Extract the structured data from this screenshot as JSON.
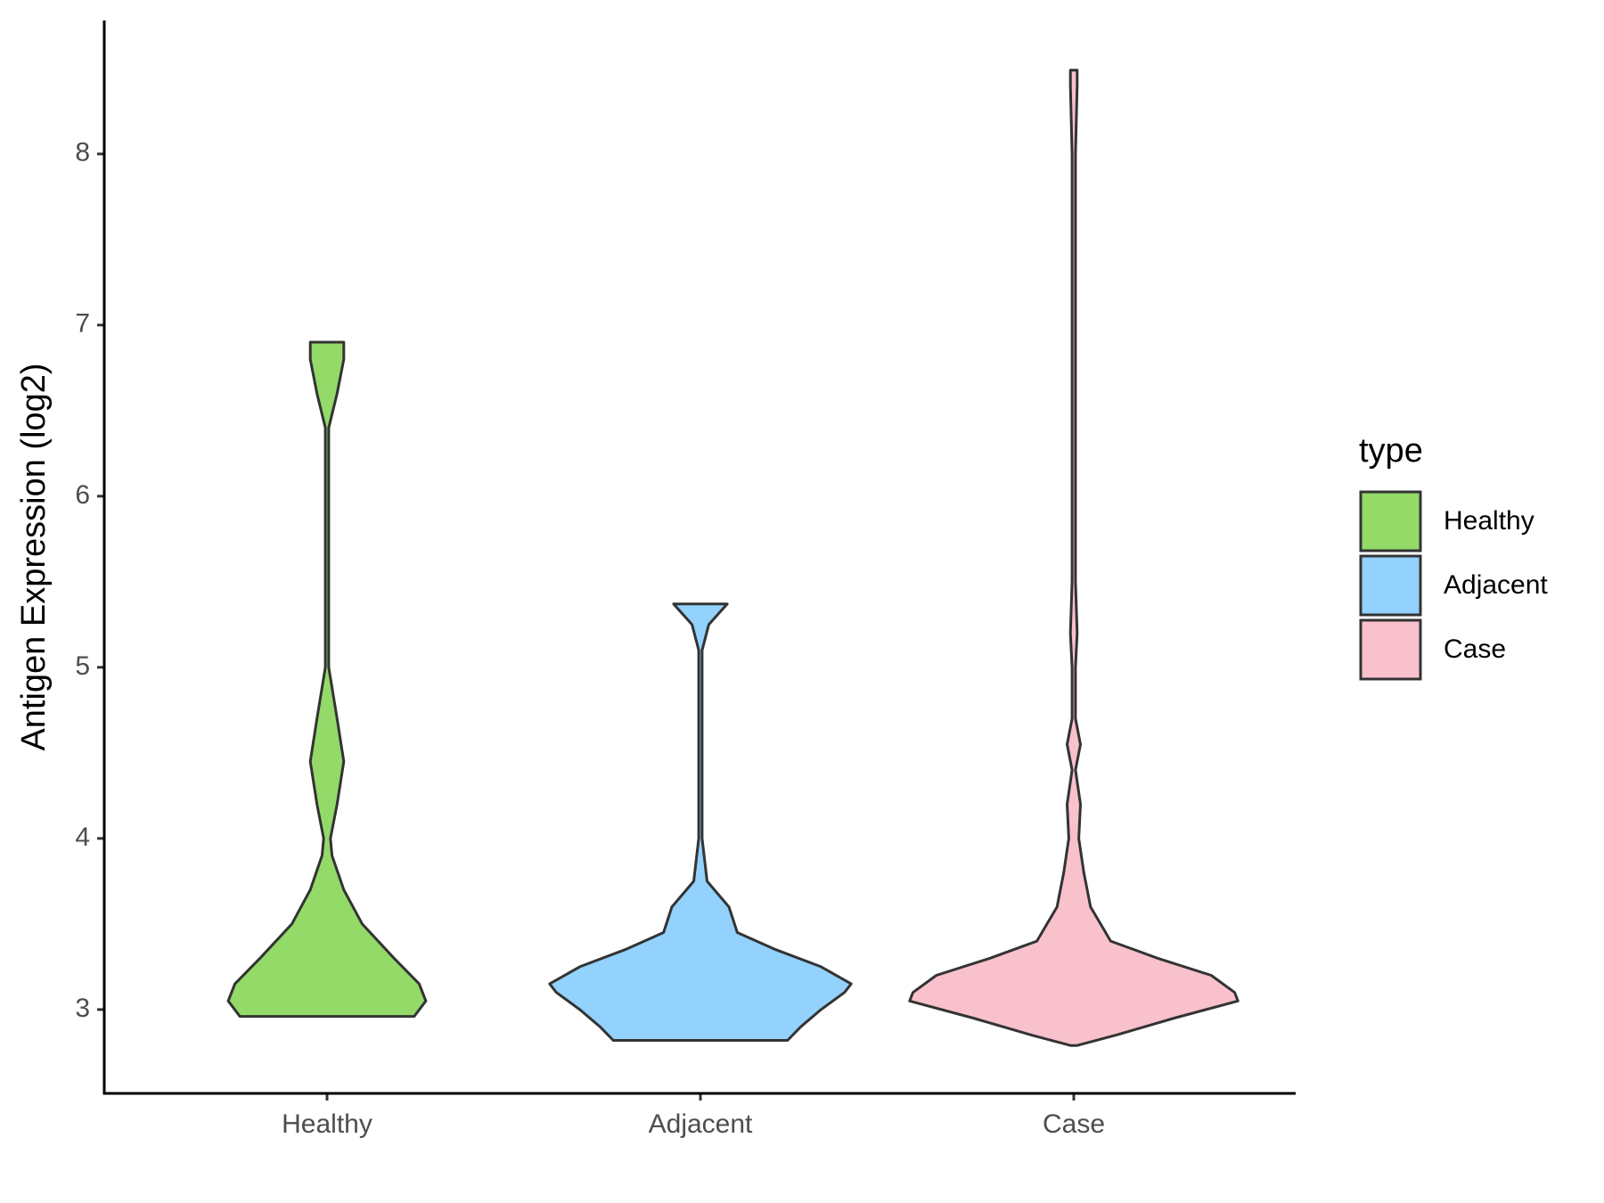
{
  "chart_data": {
    "type": "violin",
    "y_label": "Antigen Expression (log2)",
    "ylim": [
      2.51,
      8.78
    ],
    "yticks": [
      3,
      4,
      5,
      6,
      7,
      8
    ],
    "categories": [
      "Healthy",
      "Adjacent",
      "Case"
    ],
    "legend_title": "type",
    "legend": "right",
    "series": [
      {
        "name": "Healthy",
        "color": "#93da69",
        "y": [
          2.96,
          3.05,
          3.15,
          3.3,
          3.5,
          3.7,
          3.9,
          4.0,
          4.2,
          4.45,
          4.7,
          5.0,
          5.5,
          6.0,
          6.4,
          6.6,
          6.8,
          6.9
        ],
        "density": [
          0.52,
          0.59,
          0.55,
          0.4,
          0.21,
          0.1,
          0.03,
          0.02,
          0.06,
          0.1,
          0.06,
          0.01,
          0.01,
          0.01,
          0.01,
          0.06,
          0.1,
          0.1
        ]
      },
      {
        "name": "Adjacent",
        "color": "#92d2fd",
        "y": [
          2.82,
          2.9,
          3.0,
          3.1,
          3.15,
          3.25,
          3.35,
          3.45,
          3.6,
          3.75,
          4.0,
          5.1,
          5.25,
          5.37
        ],
        "density": [
          0.52,
          0.6,
          0.72,
          0.86,
          0.9,
          0.72,
          0.45,
          0.22,
          0.17,
          0.04,
          0.01,
          0.01,
          0.05,
          0.16
        ]
      },
      {
        "name": "Case",
        "color": "#f8c1cc",
        "y": [
          2.79,
          2.85,
          2.95,
          3.05,
          3.1,
          3.2,
          3.3,
          3.4,
          3.5,
          3.6,
          3.8,
          4.0,
          4.2,
          4.4,
          4.55,
          4.7,
          5.0,
          5.2,
          5.5,
          6.0,
          7.0,
          8.0,
          8.4,
          8.49
        ],
        "density": [
          0.02,
          0.25,
          0.6,
          0.98,
          0.96,
          0.82,
          0.5,
          0.22,
          0.16,
          0.1,
          0.06,
          0.03,
          0.04,
          0.01,
          0.04,
          0.01,
          0.01,
          0.02,
          0.01,
          0.01,
          0.01,
          0.01,
          0.02,
          0.02
        ]
      }
    ]
  }
}
